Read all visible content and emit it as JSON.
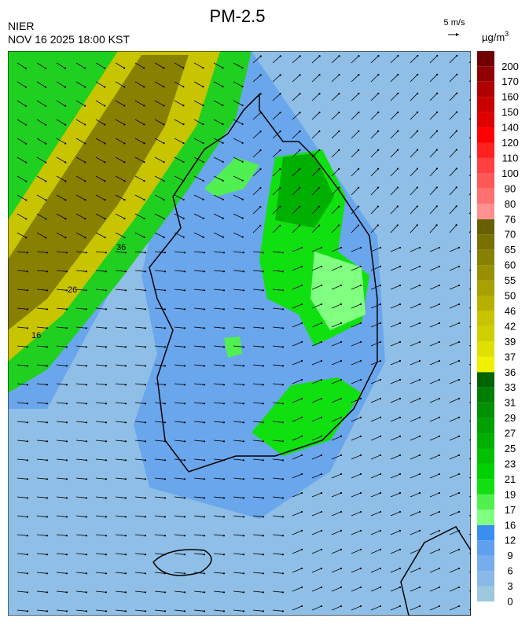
{
  "header": {
    "title": "PM-2.5",
    "agency": "NIER",
    "timestamp": "NOV 16 2025 18:00 KST",
    "wind_scale": "5 m/s"
  },
  "colorbar": {
    "unit": "µg/m",
    "unit_sup": "3",
    "levels": [
      0,
      3,
      6,
      9,
      12,
      16,
      17,
      19,
      21,
      23,
      25,
      27,
      29,
      31,
      33,
      36,
      37,
      39,
      42,
      46,
      50,
      55,
      60,
      65,
      70,
      76,
      80,
      90,
      100,
      110,
      120,
      140,
      150,
      160,
      170,
      200
    ],
    "colors": [
      "#9cc8e0",
      "#8ab8e8",
      "#78acec",
      "#5fa0ee",
      "#3a8ef0",
      "#80ff80",
      "#50f050",
      "#10e010",
      "#00d000",
      "#00c000",
      "#00b000",
      "#00a000",
      "#009000",
      "#008000",
      "#006400",
      "#f0f000",
      "#e0e000",
      "#d0d000",
      "#c8c400",
      "#b8b000",
      "#a8a000",
      "#989000",
      "#888000",
      "#787000",
      "#686000",
      "#ff9090",
      "#ff7070",
      "#ff5858",
      "#ff4040",
      "#ff2020",
      "#ff0000",
      "#e00000",
      "#c80000",
      "#b00000",
      "#900000",
      "#700000"
    ]
  },
  "contour_labels": [
    "36",
    "26",
    "16"
  ]
}
